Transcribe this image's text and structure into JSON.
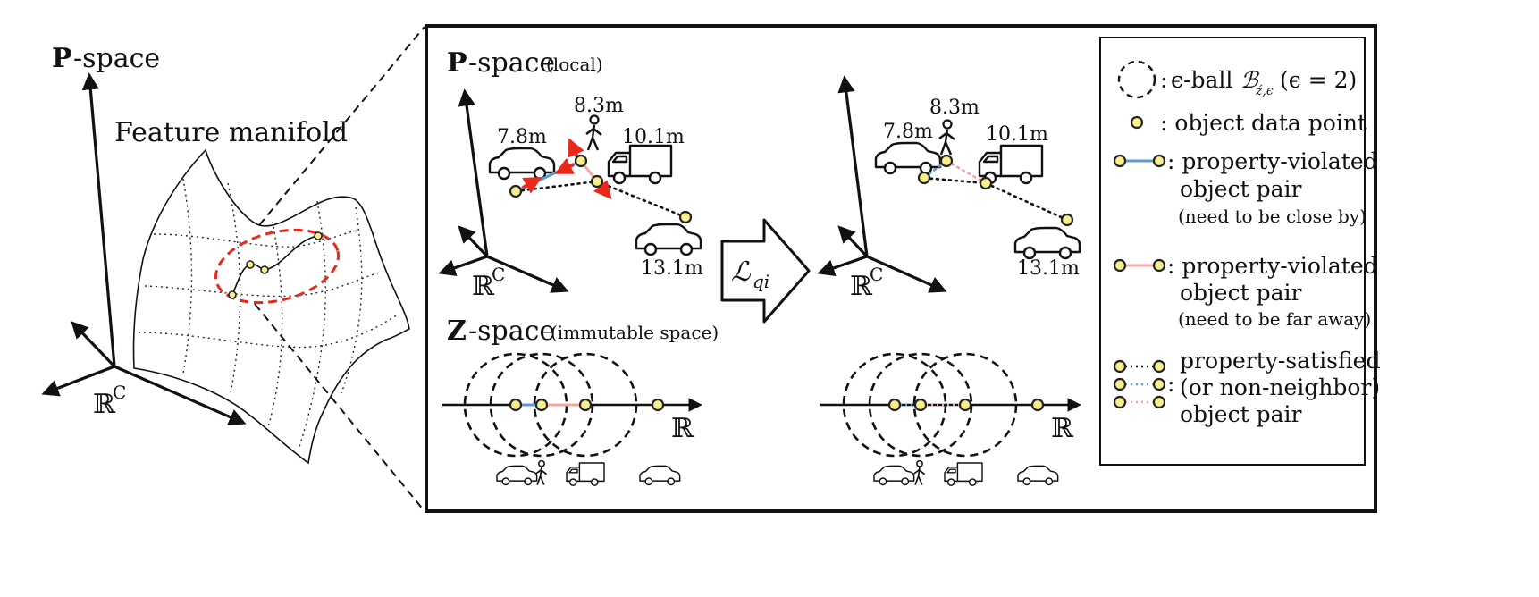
{
  "left_panel": {
    "p_space_bold": "P",
    "p_space_rest": "-space",
    "manifold_label": "Feature manifold",
    "rc_label": "ℝ",
    "rc_sup": "C"
  },
  "p_local": {
    "title_bold": "P",
    "title_rest": "-space",
    "title_note": "(local)",
    "rc_label": "ℝ",
    "rc_sup": "C"
  },
  "distances": {
    "car1": "7.8m",
    "ped": "8.3m",
    "truck": "10.1m",
    "car2": "13.1m"
  },
  "z_space": {
    "title_bold": "Z",
    "title_rest": "-space",
    "title_note": "(immutable space)",
    "r_label": "ℝ"
  },
  "arrow_label": {
    "main": "ℒ",
    "sub": "qi"
  },
  "legend": {
    "ball_sep": ":",
    "ball_text": "ϵ-ball",
    "ball_math": "ℬ",
    "ball_sub": "ź,ϵ",
    "ball_cond": "(ϵ = 2)",
    "point_text": ": object data point",
    "close_line1": ": property-violated",
    "close_line2": "object pair",
    "close_note": "(need to be close by)",
    "far_line1": ": property-violated",
    "far_line2": "object pair",
    "far_note": "(need to be far away)",
    "sat_line1": "property-satisfied",
    "sat_line2": "(or non-neighbor)",
    "sat_line3": "object pair"
  },
  "colors": {
    "violated_close": "#5b9bd5",
    "violated_far": "#f4a6a6",
    "satisfied": "#111111",
    "arrow_red": "#e8291c",
    "point_fill": "#f7ef8e",
    "manifold_ellipse": "#e8291c"
  }
}
